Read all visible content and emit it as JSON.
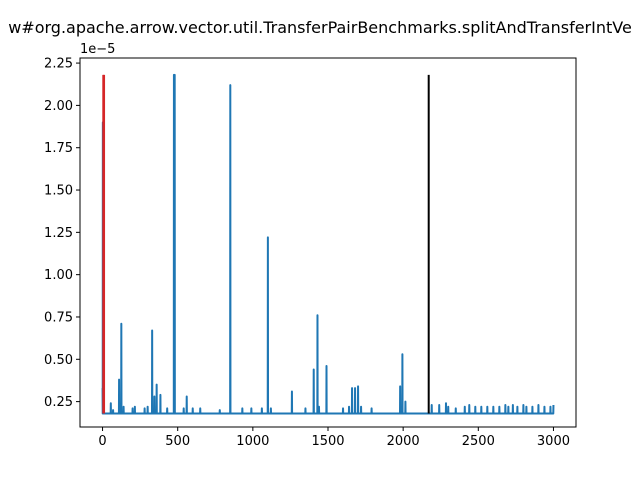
{
  "chart_data": {
    "type": "line",
    "title": "w#org.apache.arrow.vector.util.TransferPairBenchmarks.splitAndTransferIntVe",
    "xlabel": "",
    "ylabel": "",
    "y_offset_text": "1e−5",
    "y_scale": 1e-05,
    "xlim": [
      -150,
      3150
    ],
    "ylim": [
      0.1,
      2.28
    ],
    "grid": false,
    "legend": "none",
    "x_ticks": [
      0,
      500,
      1000,
      1500,
      2000,
      2500,
      3000
    ],
    "x_tick_labels": [
      "0",
      "500",
      "1000",
      "1500",
      "2000",
      "2500",
      "3000"
    ],
    "y_ticks": [
      0.25,
      0.5,
      0.75,
      1.0,
      1.25,
      1.5,
      1.75,
      2.0,
      2.25
    ],
    "y_tick_labels": [
      "0.25",
      "0.50",
      "0.75",
      "1.00",
      "1.25",
      "1.50",
      "1.75",
      "2.00",
      "2.25"
    ],
    "series": [
      {
        "color": "#1f77b4",
        "n_points": 3000,
        "baseline": 0.18,
        "spikes": [
          [
            0,
            0.33
          ],
          [
            2,
            1.9
          ],
          [
            5,
            1.9
          ],
          [
            40,
            0.18
          ],
          [
            55,
            0.24
          ],
          [
            70,
            0.2
          ],
          [
            110,
            0.38
          ],
          [
            125,
            0.71
          ],
          [
            140,
            0.22
          ],
          [
            200,
            0.21
          ],
          [
            215,
            0.22
          ],
          [
            280,
            0.21
          ],
          [
            300,
            0.22
          ],
          [
            330,
            0.67
          ],
          [
            345,
            0.28
          ],
          [
            360,
            0.35
          ],
          [
            385,
            0.29
          ],
          [
            430,
            0.21
          ],
          [
            475,
            2.18
          ],
          [
            480,
            2.18
          ],
          [
            540,
            0.21
          ],
          [
            560,
            0.28
          ],
          [
            600,
            0.21
          ],
          [
            650,
            0.21
          ],
          [
            780,
            0.2
          ],
          [
            850,
            2.12
          ],
          [
            930,
            0.21
          ],
          [
            990,
            0.21
          ],
          [
            1060,
            0.21
          ],
          [
            1100,
            1.22
          ],
          [
            1120,
            0.21
          ],
          [
            1260,
            0.31
          ],
          [
            1350,
            0.21
          ],
          [
            1405,
            0.44
          ],
          [
            1430,
            0.76
          ],
          [
            1440,
            0.22
          ],
          [
            1490,
            0.46
          ],
          [
            1600,
            0.21
          ],
          [
            1640,
            0.22
          ],
          [
            1660,
            0.33
          ],
          [
            1680,
            0.33
          ],
          [
            1700,
            0.34
          ],
          [
            1720,
            0.22
          ],
          [
            1790,
            0.21
          ],
          [
            1980,
            0.34
          ],
          [
            1995,
            0.53
          ],
          [
            2015,
            0.25
          ],
          [
            2190,
            0.23
          ],
          [
            2240,
            0.23
          ],
          [
            2285,
            0.24
          ],
          [
            2300,
            0.22
          ],
          [
            2350,
            0.21
          ],
          [
            2410,
            0.22
          ],
          [
            2440,
            0.23
          ],
          [
            2480,
            0.22
          ],
          [
            2520,
            0.22
          ],
          [
            2560,
            0.22
          ],
          [
            2600,
            0.22
          ],
          [
            2640,
            0.22
          ],
          [
            2680,
            0.23
          ],
          [
            2700,
            0.22
          ],
          [
            2730,
            0.23
          ],
          [
            2760,
            0.22
          ],
          [
            2800,
            0.23
          ],
          [
            2820,
            0.22
          ],
          [
            2860,
            0.22
          ],
          [
            2900,
            0.23
          ],
          [
            2940,
            0.22
          ],
          [
            2980,
            0.22
          ],
          [
            3000,
            0.23
          ]
        ]
      }
    ],
    "vlines": [
      {
        "x": 5,
        "y_range": [
          0.18,
          2.18
        ],
        "color": "#d62728"
      },
      {
        "x": 10,
        "y_range": [
          0.18,
          2.18
        ],
        "color": "#d62728"
      },
      {
        "x": 2170,
        "y_range": [
          0.18,
          2.18
        ],
        "color": "#000000"
      }
    ]
  }
}
